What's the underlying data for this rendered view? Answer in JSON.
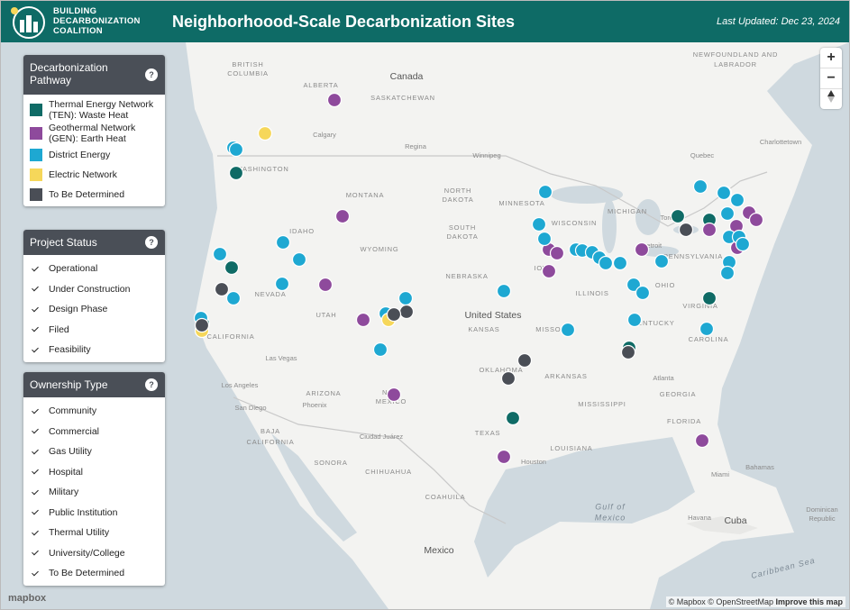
{
  "header": {
    "logo": [
      "BUILDING",
      "DECARBONIZATION",
      "COALITION"
    ],
    "title": "Neighborhoood-Scale Decarbonization Sites",
    "updated": "Last Updated: Dec 23, 2024"
  },
  "filters": [
    {
      "title": "Decarbonization Pathway",
      "help": "?",
      "items": [
        {
          "label": "Thermal Energy Network (TEN): Waste Heat",
          "color": "#0f6b66"
        },
        {
          "label": "Geothermal Network (GEN): Earth Heat",
          "color": "#8e4a9c"
        },
        {
          "label": "District Energy",
          "color": "#1ea8d2"
        },
        {
          "label": "Electric Network",
          "color": "#f6d75a"
        },
        {
          "label": "To Be Determined",
          "color": "#4a4e56"
        }
      ]
    },
    {
      "title": "Project Status",
      "help": "?",
      "items": [
        {
          "label": "Operational",
          "checked": true
        },
        {
          "label": "Under Construction",
          "checked": true
        },
        {
          "label": "Design Phase",
          "checked": true
        },
        {
          "label": "Filed",
          "checked": true
        },
        {
          "label": "Feasibility",
          "checked": true
        }
      ]
    },
    {
      "title": "Ownership Type",
      "help": "?",
      "items": [
        {
          "label": "Community",
          "checked": true
        },
        {
          "label": "Commercial",
          "checked": true
        },
        {
          "label": "Gas Utility",
          "checked": true
        },
        {
          "label": "Hospital",
          "checked": true
        },
        {
          "label": "Military",
          "checked": true
        },
        {
          "label": "Public Institution",
          "checked": true
        },
        {
          "label": "Thermal Utility",
          "checked": true
        },
        {
          "label": "University/College",
          "checked": true
        },
        {
          "label": "To Be Determined",
          "checked": true
        }
      ]
    }
  ],
  "map": {
    "labels": [
      "Canada",
      "United States",
      "Mexico",
      "BRITISH",
      "COLUMBIA",
      "ALBERTA",
      "SASKATCHEWAN",
      "NEWFOUNDLAND AND",
      "LABRADOR",
      "Calgary",
      "Regina",
      "Winnipeg",
      "Quebec",
      "Charlottetown",
      "MONTANA",
      "NORTH",
      "DAKOTA",
      "SOUTH",
      "DAKOTA",
      "MINNESOTA",
      "WISCONSIN",
      "MICHIGAN",
      "Toronto",
      "Detroit",
      "WASHINGTON",
      "IDAHO",
      "WYOMING",
      "NEVADA",
      "UTAH",
      "NEBRASKA",
      "IOWA",
      "ILLINOIS",
      "OHIO",
      "PENNSYLVANIA",
      "KANSAS",
      "MISSOURI",
      "KENTUCKY",
      "VIRGINIA",
      "CAROLINA",
      "Atlanta",
      "GEORGIA",
      "MISSISSIPPI",
      "ARKANSAS",
      "LOUISIANA",
      "OKLAHOMA",
      "TEXAS",
      "NEW",
      "MEXICO",
      "ARIZONA",
      "CALIFORNIA",
      "Los Angeles",
      "San Diego",
      "Las Vegas",
      "Phoenix",
      "Ciudad Juárez",
      "Houston",
      "BAJA",
      "CALIFORNIA",
      "SONORA",
      "CHIHUAHUA",
      "COAHUILA",
      "Gulf of",
      "Mexico",
      "Havana",
      "Cuba",
      "Bahamas",
      "Miami",
      "Dominican",
      "Republic",
      "Caribbean Sea",
      "FLORIDA"
    ],
    "controls": {
      "zoom_in": "+",
      "zoom_out": "−"
    },
    "logo": "mapbox",
    "attribution": [
      "© Mapbox",
      "© OpenStreetMap",
      "Improve this map"
    ]
  }
}
